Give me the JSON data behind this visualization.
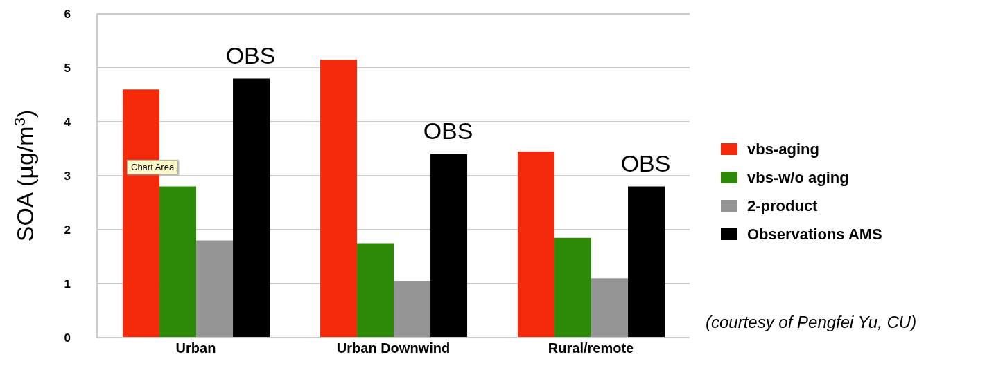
{
  "chart_data": {
    "type": "bar",
    "ylabel": "SOA (µg/m$^{3}$)",
    "categories": [
      "Urban",
      "Urban Downwind",
      "Rural/remote"
    ],
    "series": [
      {
        "name": "vbs-aging",
        "color": "#f42a0a",
        "values": [
          4.6,
          5.15,
          3.45
        ]
      },
      {
        "name": "vbs-w/o aging",
        "color": "#2c8a08",
        "values": [
          2.8,
          1.75,
          1.85
        ]
      },
      {
        "name": "2-product",
        "color": "#959595",
        "values": [
          1.8,
          1.05,
          1.1
        ]
      },
      {
        "name": "Observations AMS",
        "color": "#000000",
        "values": [
          4.8,
          3.4,
          2.8
        ]
      }
    ],
    "ylim": [
      0,
      6
    ],
    "yticks": [
      0,
      1,
      2,
      3,
      4,
      5,
      6
    ],
    "grid": "y",
    "legend": "right",
    "annotations": [
      "OBS",
      "OBS",
      "OBS",
      "Chart Area",
      "(courtesy of Pengfei Yu, CU)"
    ]
  }
}
